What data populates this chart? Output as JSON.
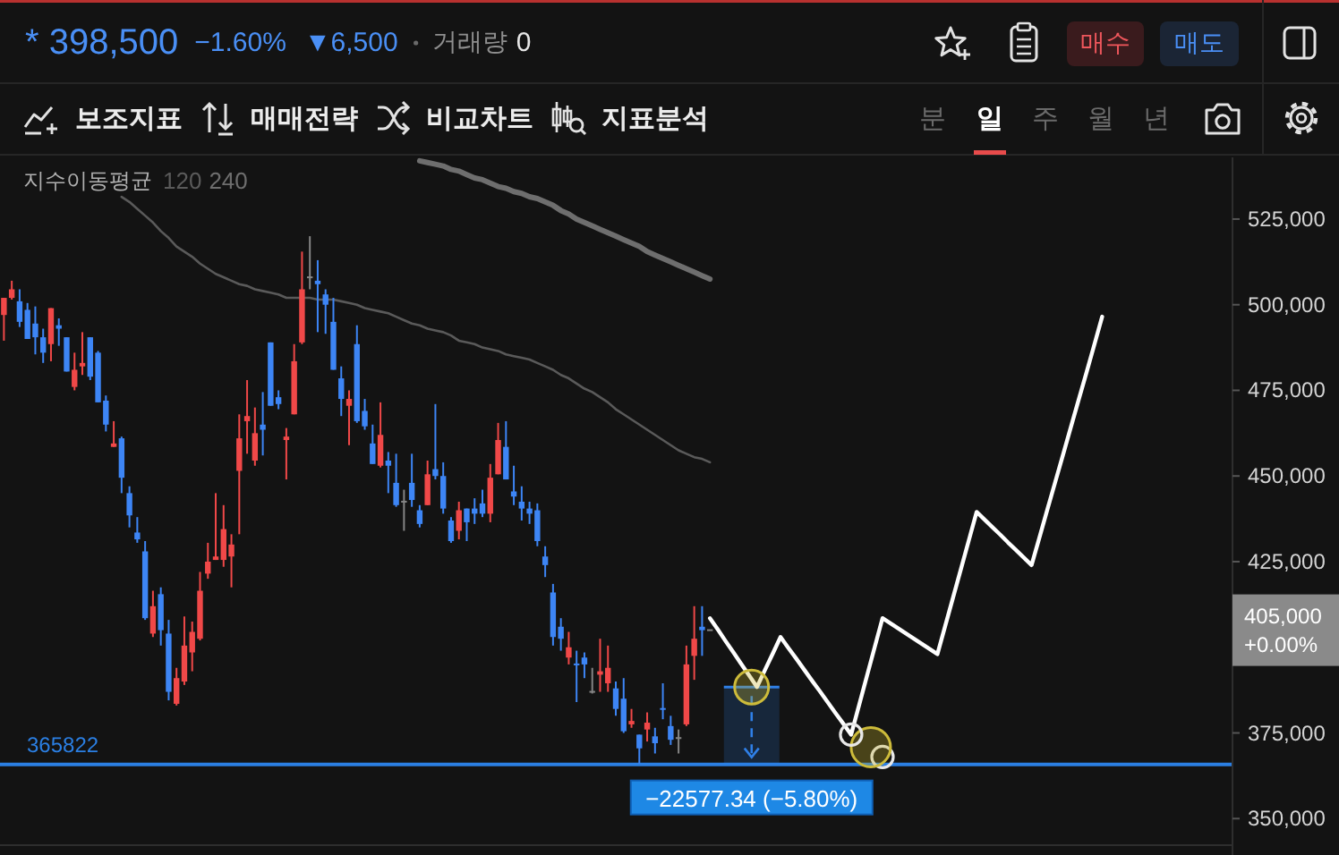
{
  "chart_data": {
    "type": "candlestick",
    "categories": [
      null,
      null,
      null,
      null,
      null,
      null,
      null,
      null,
      null,
      null,
      null,
      null,
      null,
      null,
      null,
      null,
      null,
      null,
      null,
      null,
      null,
      null,
      null,
      null,
      null,
      null,
      null,
      null,
      null,
      null,
      null,
      null,
      null,
      null,
      null,
      null,
      null,
      null,
      null,
      null,
      null,
      null,
      null,
      null,
      null,
      null,
      null,
      null,
      null,
      null,
      null,
      null,
      null,
      null,
      null,
      null,
      null,
      null,
      null,
      null,
      null,
      null,
      null,
      null,
      null,
      null,
      null,
      null,
      null,
      null,
      null,
      null,
      null,
      null,
      null,
      null,
      null,
      null,
      null,
      null,
      null,
      null,
      null,
      null,
      null,
      null,
      null,
      null,
      null,
      null,
      null,
      null,
      null,
      null,
      null,
      null,
      null,
      null,
      null,
      null,
      null,
      null,
      null,
      null,
      null,
      null,
      null,
      null,
      null,
      null,
      null,
      null,
      null,
      null,
      null,
      null,
      null,
      null,
      null,
      null,
      null,
      null,
      null,
      null,
      null,
      null,
      null,
      null,
      null,
      null,
      null,
      null,
      null,
      null,
      null,
      null,
      null,
      null,
      null,
      null,
      null,
      null,
      null,
      null,
      null,
      null,
      null,
      null,
      null,
      null,
      null,
      null,
      null,
      null,
      null,
      null,
      null
    ],
    "ohlc": [
      [
        497000,
        502000,
        489500,
        502000
      ],
      [
        502000,
        507000,
        501500,
        504500
      ],
      [
        501000,
        504500,
        493500,
        495000
      ],
      [
        498500,
        500500,
        490000,
        490000
      ],
      [
        494500,
        499500,
        485500,
        490500
      ],
      [
        490500,
        493000,
        483000,
        486000
      ],
      [
        488500,
        499000,
        483500,
        499000
      ],
      [
        494000,
        496000,
        488000,
        493000
      ],
      [
        490500,
        490500,
        480500,
        480500
      ],
      [
        476000,
        486000,
        475000,
        481000
      ],
      [
        482000,
        492000,
        479500,
        483000
      ],
      [
        490500,
        490500,
        478000,
        479000
      ],
      [
        486000,
        486500,
        471500,
        471500
      ],
      [
        472000,
        473500,
        463000,
        465000
      ],
      [
        458500,
        466000,
        458500,
        459500
      ],
      [
        461000,
        461500,
        445000,
        449500
      ],
      [
        445000,
        447000,
        435000,
        438500
      ],
      [
        433500,
        438000,
        430500,
        431500
      ],
      [
        428000,
        431000,
        408000,
        408500
      ],
      [
        404000,
        416500,
        403000,
        412000
      ],
      [
        415500,
        417500,
        400500,
        405000
      ],
      [
        404000,
        408000,
        384500,
        387000
      ],
      [
        383500,
        394000,
        383000,
        391000
      ],
      [
        390000,
        409000,
        389000,
        400500
      ],
      [
        398500,
        407500,
        393000,
        404500
      ],
      [
        402500,
        422000,
        402000,
        416500
      ],
      [
        421500,
        430500,
        420000,
        425000
      ],
      [
        425500,
        445000,
        425500,
        426500
      ],
      [
        425500,
        441500,
        423500,
        434500
      ],
      [
        426500,
        433000,
        417500,
        430000
      ],
      [
        451500,
        468000,
        433000,
        461000
      ],
      [
        466000,
        478000,
        456500,
        467500
      ],
      [
        454500,
        470000,
        453000,
        462500
      ],
      [
        465000,
        474500,
        456000,
        463500
      ],
      [
        489000,
        489000,
        470500,
        470500
      ],
      [
        473000,
        475000,
        469500,
        471000
      ],
      [
        460500,
        464000,
        449000,
        461500
      ],
      [
        468000,
        488500,
        468000,
        483500
      ],
      [
        489000,
        515500,
        488500,
        504500
      ],
      [
        508000,
        520000,
        504500,
        508000
      ],
      [
        507000,
        513000,
        492000,
        506000
      ],
      [
        503000,
        504500,
        491500,
        500000
      ],
      [
        495000,
        502000,
        481000,
        481000
      ],
      [
        478500,
        482000,
        467500,
        472500
      ],
      [
        470500,
        475000,
        459000,
        472500
      ],
      [
        488500,
        494000,
        465500,
        466000
      ],
      [
        469000,
        472500,
        463500,
        464500
      ],
      [
        459500,
        465000,
        453500,
        453500
      ],
      [
        453000,
        471500,
        452500,
        462000
      ],
      [
        454500,
        457000,
        445000,
        453000
      ],
      [
        448000,
        456500,
        441000,
        441500
      ],
      [
        442500,
        446000,
        434000,
        442500
      ],
      [
        448000,
        456500,
        441000,
        443000
      ],
      [
        440000,
        441500,
        435000,
        436000
      ],
      [
        441500,
        454500,
        441500,
        450500
      ],
      [
        452000,
        471000,
        449000,
        450000
      ],
      [
        450000,
        454000,
        439000,
        440500
      ],
      [
        437000,
        438000,
        430500,
        431000
      ],
      [
        434000,
        442500,
        431500,
        440000
      ],
      [
        440500,
        440500,
        431000,
        436500
      ],
      [
        440500,
        443500,
        436000,
        439000
      ],
      [
        442000,
        446000,
        438000,
        439000
      ],
      [
        439000,
        453500,
        436500,
        449500
      ],
      [
        450500,
        465500,
        450500,
        460500
      ],
      [
        458500,
        466000,
        449000,
        449000
      ],
      [
        445500,
        453000,
        441500,
        444000
      ],
      [
        442500,
        447000,
        437000,
        440500
      ],
      [
        440500,
        442500,
        436000,
        439000
      ],
      [
        440000,
        442000,
        429500,
        431000
      ],
      [
        426500,
        429500,
        420500,
        424000
      ],
      [
        416000,
        418500,
        400500,
        403000
      ],
      [
        406000,
        408500,
        399000,
        402500
      ],
      [
        397000,
        404500,
        395000,
        400000
      ],
      [
        395000,
        399000,
        384000,
        394500
      ],
      [
        397000,
        398500,
        391000,
        395000
      ],
      [
        387000,
        394000,
        386500,
        387000
      ],
      [
        392000,
        402500,
        387000,
        393000
      ],
      [
        389500,
        400500,
        387000,
        394000
      ],
      [
        388000,
        390000,
        380000,
        382000
      ],
      [
        385000,
        391000,
        375000,
        375500
      ],
      [
        377500,
        382000,
        376500,
        378500
      ],
      [
        374500,
        374500,
        366000,
        370500
      ],
      [
        376000,
        381000,
        372500,
        378000
      ],
      [
        374000,
        376500,
        369000,
        372000
      ],
      [
        382000,
        389500,
        379000,
        381500
      ],
      [
        377000,
        380000,
        371500,
        373000
      ],
      [
        373500,
        376000,
        369000,
        373500
      ],
      [
        377500,
        400500,
        377000,
        395000
      ],
      [
        397500,
        412000,
        390500,
        402500
      ],
      [
        406000,
        412000,
        397500,
        405000
      ],
      [
        405000,
        405000,
        405000,
        405000
      ],
      null,
      null,
      null,
      null,
      null,
      null,
      null,
      null,
      null,
      null,
      null,
      null,
      null,
      null,
      null,
      null,
      null,
      null,
      null,
      null,
      null,
      null,
      null,
      null,
      null,
      null,
      null,
      null,
      null,
      null,
      null,
      null,
      null,
      null,
      null,
      null,
      null,
      null,
      null,
      null,
      null,
      null,
      null,
      null,
      null,
      null,
      null,
      null,
      null,
      null,
      null,
      null,
      null,
      null,
      null,
      null,
      null,
      null,
      null,
      null,
      null,
      null,
      null,
      null,
      null,
      null
    ],
    "colors": [
      "#f04848",
      "#f04848",
      "#3d85f5",
      "#3d85f5",
      "#3d85f5",
      "#3d85f5",
      "#f04848",
      "#3d85f5",
      "#3d85f5",
      "#f04848",
      "#f04848",
      "#3d85f5",
      "#3d85f5",
      "#3d85f5",
      "#f04848",
      "#3d85f5",
      "#3d85f5",
      "#3d85f5",
      "#3d85f5",
      "#f04848",
      "#3d85f5",
      "#3d85f5",
      "#f04848",
      "#f04848",
      "#f04848",
      "#f04848",
      "#f04848",
      "#f04848",
      "#f04848",
      "#f04848",
      "#f04848",
      "#f04848",
      "#f04848",
      "#3d85f5",
      "#3d85f5",
      "#3d85f5",
      "#f04848",
      "#f04848",
      "#f04848",
      "#858585",
      "#3d85f5",
      "#3d85f5",
      "#3d85f5",
      "#3d85f5",
      "#f04848",
      "#3d85f5",
      "#3d85f5",
      "#3d85f5",
      "#f04848",
      "#3d85f5",
      "#3d85f5",
      "#858585",
      "#3d85f5",
      "#3d85f5",
      "#f04848",
      "#3d85f5",
      "#3d85f5",
      "#3d85f5",
      "#f04848",
      "#3d85f5",
      "#3d85f5",
      "#3d85f5",
      "#f04848",
      "#f04848",
      "#3d85f5",
      "#3d85f5",
      "#3d85f5",
      "#3d85f5",
      "#3d85f5",
      "#3d85f5",
      "#3d85f5",
      "#3d85f5",
      "#f04848",
      "#3d85f5",
      "#3d85f5",
      "#858585",
      "#f04848",
      "#f04848",
      "#3d85f5",
      "#3d85f5",
      "#f04848",
      "#3d85f5",
      "#f04848",
      "#3d85f5",
      "#3d85f5",
      "#3d85f5",
      "#858585",
      "#f04848",
      "#f04848",
      "#3d85f5",
      "#858585",
      null,
      null,
      null,
      null,
      null,
      null,
      null,
      null,
      null,
      null,
      null,
      null,
      null,
      null,
      null,
      null,
      null,
      null,
      null,
      null,
      null,
      null,
      null,
      null,
      null,
      null,
      null,
      null,
      null,
      null,
      null,
      null,
      null,
      null,
      null,
      null,
      null,
      null,
      null,
      null,
      null,
      null,
      null,
      null,
      null,
      null,
      null,
      null,
      null,
      null,
      null,
      null,
      null,
      null,
      null,
      null,
      null,
      null,
      null,
      null,
      null,
      null,
      null,
      null,
      null,
      null
    ],
    "series": [
      {
        "name": "120",
        "type": "line",
        "color": "#5a5a5a",
        "values": [
          null,
          null,
          null,
          null,
          null,
          null,
          null,
          null,
          null,
          null,
          null,
          null,
          null,
          null,
          null,
          531500,
          530000,
          528000,
          526000,
          524000,
          521500,
          519500,
          517000,
          515500,
          514000,
          512000,
          510500,
          509000,
          508000,
          507000,
          506000,
          505500,
          504500,
          504000,
          503500,
          503000,
          502000,
          502000,
          502000,
          502000,
          501500,
          501500,
          501500,
          501000,
          500500,
          500000,
          499000,
          498500,
          498000,
          497500,
          496500,
          495500,
          494500,
          494000,
          493000,
          492500,
          492000,
          491000,
          489500,
          489000,
          488500,
          487500,
          487000,
          486500,
          485500,
          485000,
          484500,
          484000,
          483000,
          482000,
          481000,
          479500,
          478500,
          477000,
          475500,
          474500,
          473000,
          471500,
          469500,
          468000,
          466500,
          465000,
          463500,
          462000,
          460500,
          459000,
          457500,
          456500,
          455500,
          455000,
          454000,
          null,
          null,
          null,
          null,
          null,
          null,
          null,
          null,
          null,
          null,
          null,
          null,
          null,
          null,
          null,
          null,
          null,
          null,
          null,
          null,
          null,
          null,
          null,
          null,
          null,
          null,
          null,
          null,
          null,
          null,
          null,
          null,
          null,
          null,
          null,
          null,
          null,
          null,
          null,
          null,
          null,
          null,
          null,
          null,
          null,
          null,
          null,
          null,
          null,
          null,
          null,
          null,
          null,
          null,
          null,
          null,
          null,
          null,
          null,
          null,
          null,
          null,
          null,
          null,
          null,
          null
        ]
      },
      {
        "name": "240",
        "type": "line",
        "color": "#6e6e6e",
        "values": [
          null,
          null,
          null,
          null,
          null,
          null,
          null,
          null,
          null,
          null,
          null,
          null,
          null,
          null,
          null,
          null,
          null,
          null,
          null,
          null,
          null,
          null,
          null,
          null,
          null,
          null,
          null,
          null,
          null,
          null,
          null,
          null,
          null,
          null,
          null,
          null,
          null,
          null,
          null,
          null,
          null,
          null,
          null,
          null,
          null,
          null,
          null,
          null,
          null,
          null,
          null,
          null,
          null,
          542000,
          541500,
          541000,
          540500,
          539500,
          539000,
          538000,
          537000,
          536500,
          535500,
          534500,
          534000,
          533000,
          532500,
          531500,
          531000,
          530000,
          529000,
          527500,
          526500,
          525000,
          524000,
          523000,
          522000,
          521000,
          520000,
          519000,
          518000,
          517000,
          515500,
          514500,
          513500,
          512500,
          511500,
          510500,
          509500,
          508500,
          507500,
          null,
          null,
          null,
          null,
          null,
          null,
          null,
          null,
          null,
          null,
          null,
          null,
          null,
          null,
          null,
          null,
          null,
          null,
          null,
          null,
          null,
          null,
          null,
          null,
          null,
          null,
          null,
          null,
          null,
          null,
          null,
          null,
          null,
          null,
          null,
          null,
          null,
          null,
          null,
          null,
          null,
          null,
          null,
          null,
          null,
          null,
          null,
          null,
          null,
          null,
          null,
          null,
          null,
          null,
          null,
          null,
          null,
          null,
          null,
          null,
          null,
          null,
          null,
          null,
          null,
          null
        ]
      },
      {
        "type": "line",
        "color": "#ffffff",
        "values": [
          null,
          null,
          null,
          null,
          null,
          null,
          null,
          null,
          null,
          null,
          null,
          null,
          null,
          null,
          null,
          null,
          null,
          null,
          null,
          null,
          null,
          null,
          null,
          null,
          null,
          null,
          null,
          null,
          null,
          null,
          null,
          null,
          null,
          null,
          null,
          null,
          null,
          null,
          null,
          null,
          null,
          null,
          null,
          null,
          null,
          null,
          null,
          null,
          null,
          null,
          null,
          null,
          null,
          null,
          null,
          null,
          null,
          null,
          null,
          null,
          null,
          null,
          null,
          null,
          null,
          null,
          null,
          null,
          null,
          null,
          null,
          null,
          null,
          null,
          null,
          null,
          null,
          null,
          null,
          null,
          null,
          null,
          null,
          null,
          null,
          null,
          null,
          null,
          null,
          null,
          408500,
          405200,
          401800,
          398500,
          395100,
          391800,
          388400,
          393300,
          398100,
          403000,
          399800,
          396700,
          393500,
          390300,
          387200,
          384000,
          380800,
          377700,
          374500,
          383000,
          391500,
          400000,
          408500,
          407000,
          405500,
          404000,
          402500,
          401000,
          399500,
          398000,
          406300,
          414600,
          422900,
          431200,
          439500,
          437300,
          435100,
          432900,
          430600,
          428400,
          426200,
          424000,
          432000,
          440100,
          448100,
          456100,
          464200,
          472200,
          480200,
          488300,
          496500,
          null,
          null,
          null,
          null,
          null,
          null,
          null,
          null,
          null,
          null,
          null,
          null,
          null,
          null,
          null,
          null
        ]
      },
      {
        "type": "scatter",
        "color": "#e8e8e8",
        "values": [
          null,
          null,
          null,
          null,
          null,
          null,
          null,
          null,
          null,
          null,
          null,
          null,
          null,
          null,
          null,
          null,
          null,
          null,
          null,
          null,
          null,
          null,
          null,
          null,
          null,
          null,
          null,
          null,
          null,
          null,
          null,
          null,
          null,
          null,
          null,
          null,
          null,
          null,
          null,
          null,
          null,
          null,
          null,
          null,
          null,
          null,
          null,
          null,
          null,
          null,
          null,
          null,
          null,
          null,
          null,
          null,
          null,
          null,
          null,
          null,
          null,
          null,
          null,
          null,
          null,
          null,
          null,
          null,
          null,
          null,
          null,
          null,
          null,
          null,
          null,
          null,
          null,
          null,
          null,
          null,
          null,
          null,
          null,
          null,
          null,
          null,
          null,
          null,
          null,
          null,
          null,
          null,
          null,
          null,
          null,
          null,
          null,
          null,
          null,
          null,
          null,
          null,
          null,
          null,
          null,
          null,
          null,
          null,
          null,
          null,
          null,
          null,
          368000,
          null,
          null,
          null,
          null,
          null,
          null,
          null,
          null,
          null,
          null,
          null,
          null,
          null,
          null,
          null,
          null,
          null,
          null,
          null,
          null,
          null,
          null,
          null,
          null,
          null,
          null,
          null,
          null,
          null,
          null,
          null,
          null,
          null,
          null,
          null,
          null,
          null,
          null,
          null,
          null,
          null,
          null,
          null,
          null
        ]
      }
    ],
    "ylim": [
      342500,
      543000
    ],
    "yticks": [
      {
        "value": 350000,
        "label": "350,000"
      },
      {
        "value": 375000,
        "label": "375,000"
      },
      {
        "value": 425000,
        "label": "425,000"
      },
      {
        "value": 450000,
        "label": "450,000"
      },
      {
        "value": 475000,
        "label": "475,000"
      },
      {
        "value": 500000,
        "label": "500,000"
      },
      {
        "value": 525000,
        "label": "525,000"
      }
    ],
    "tick_labels": "y",
    "legend": "top left",
    "legend_title": "지수이동평균",
    "ref_lines": [
      {
        "axis": "y",
        "value": 365822,
        "label": "365822",
        "color": "#2b7fe3"
      }
    ],
    "annotations": [
      {
        "text": "−22577.34 (−5.80%)",
        "y": 365822
      },
      "405,000\n+0.00%",
      "* 398,500",
      "−1.60%",
      "▼6,500",
      "거래량",
      "0",
      "매수",
      "매도",
      "보조지표",
      "매매전략",
      "비교차트",
      "지표분석",
      "분",
      "일",
      "주",
      "월",
      "년"
    ]
  }
}
